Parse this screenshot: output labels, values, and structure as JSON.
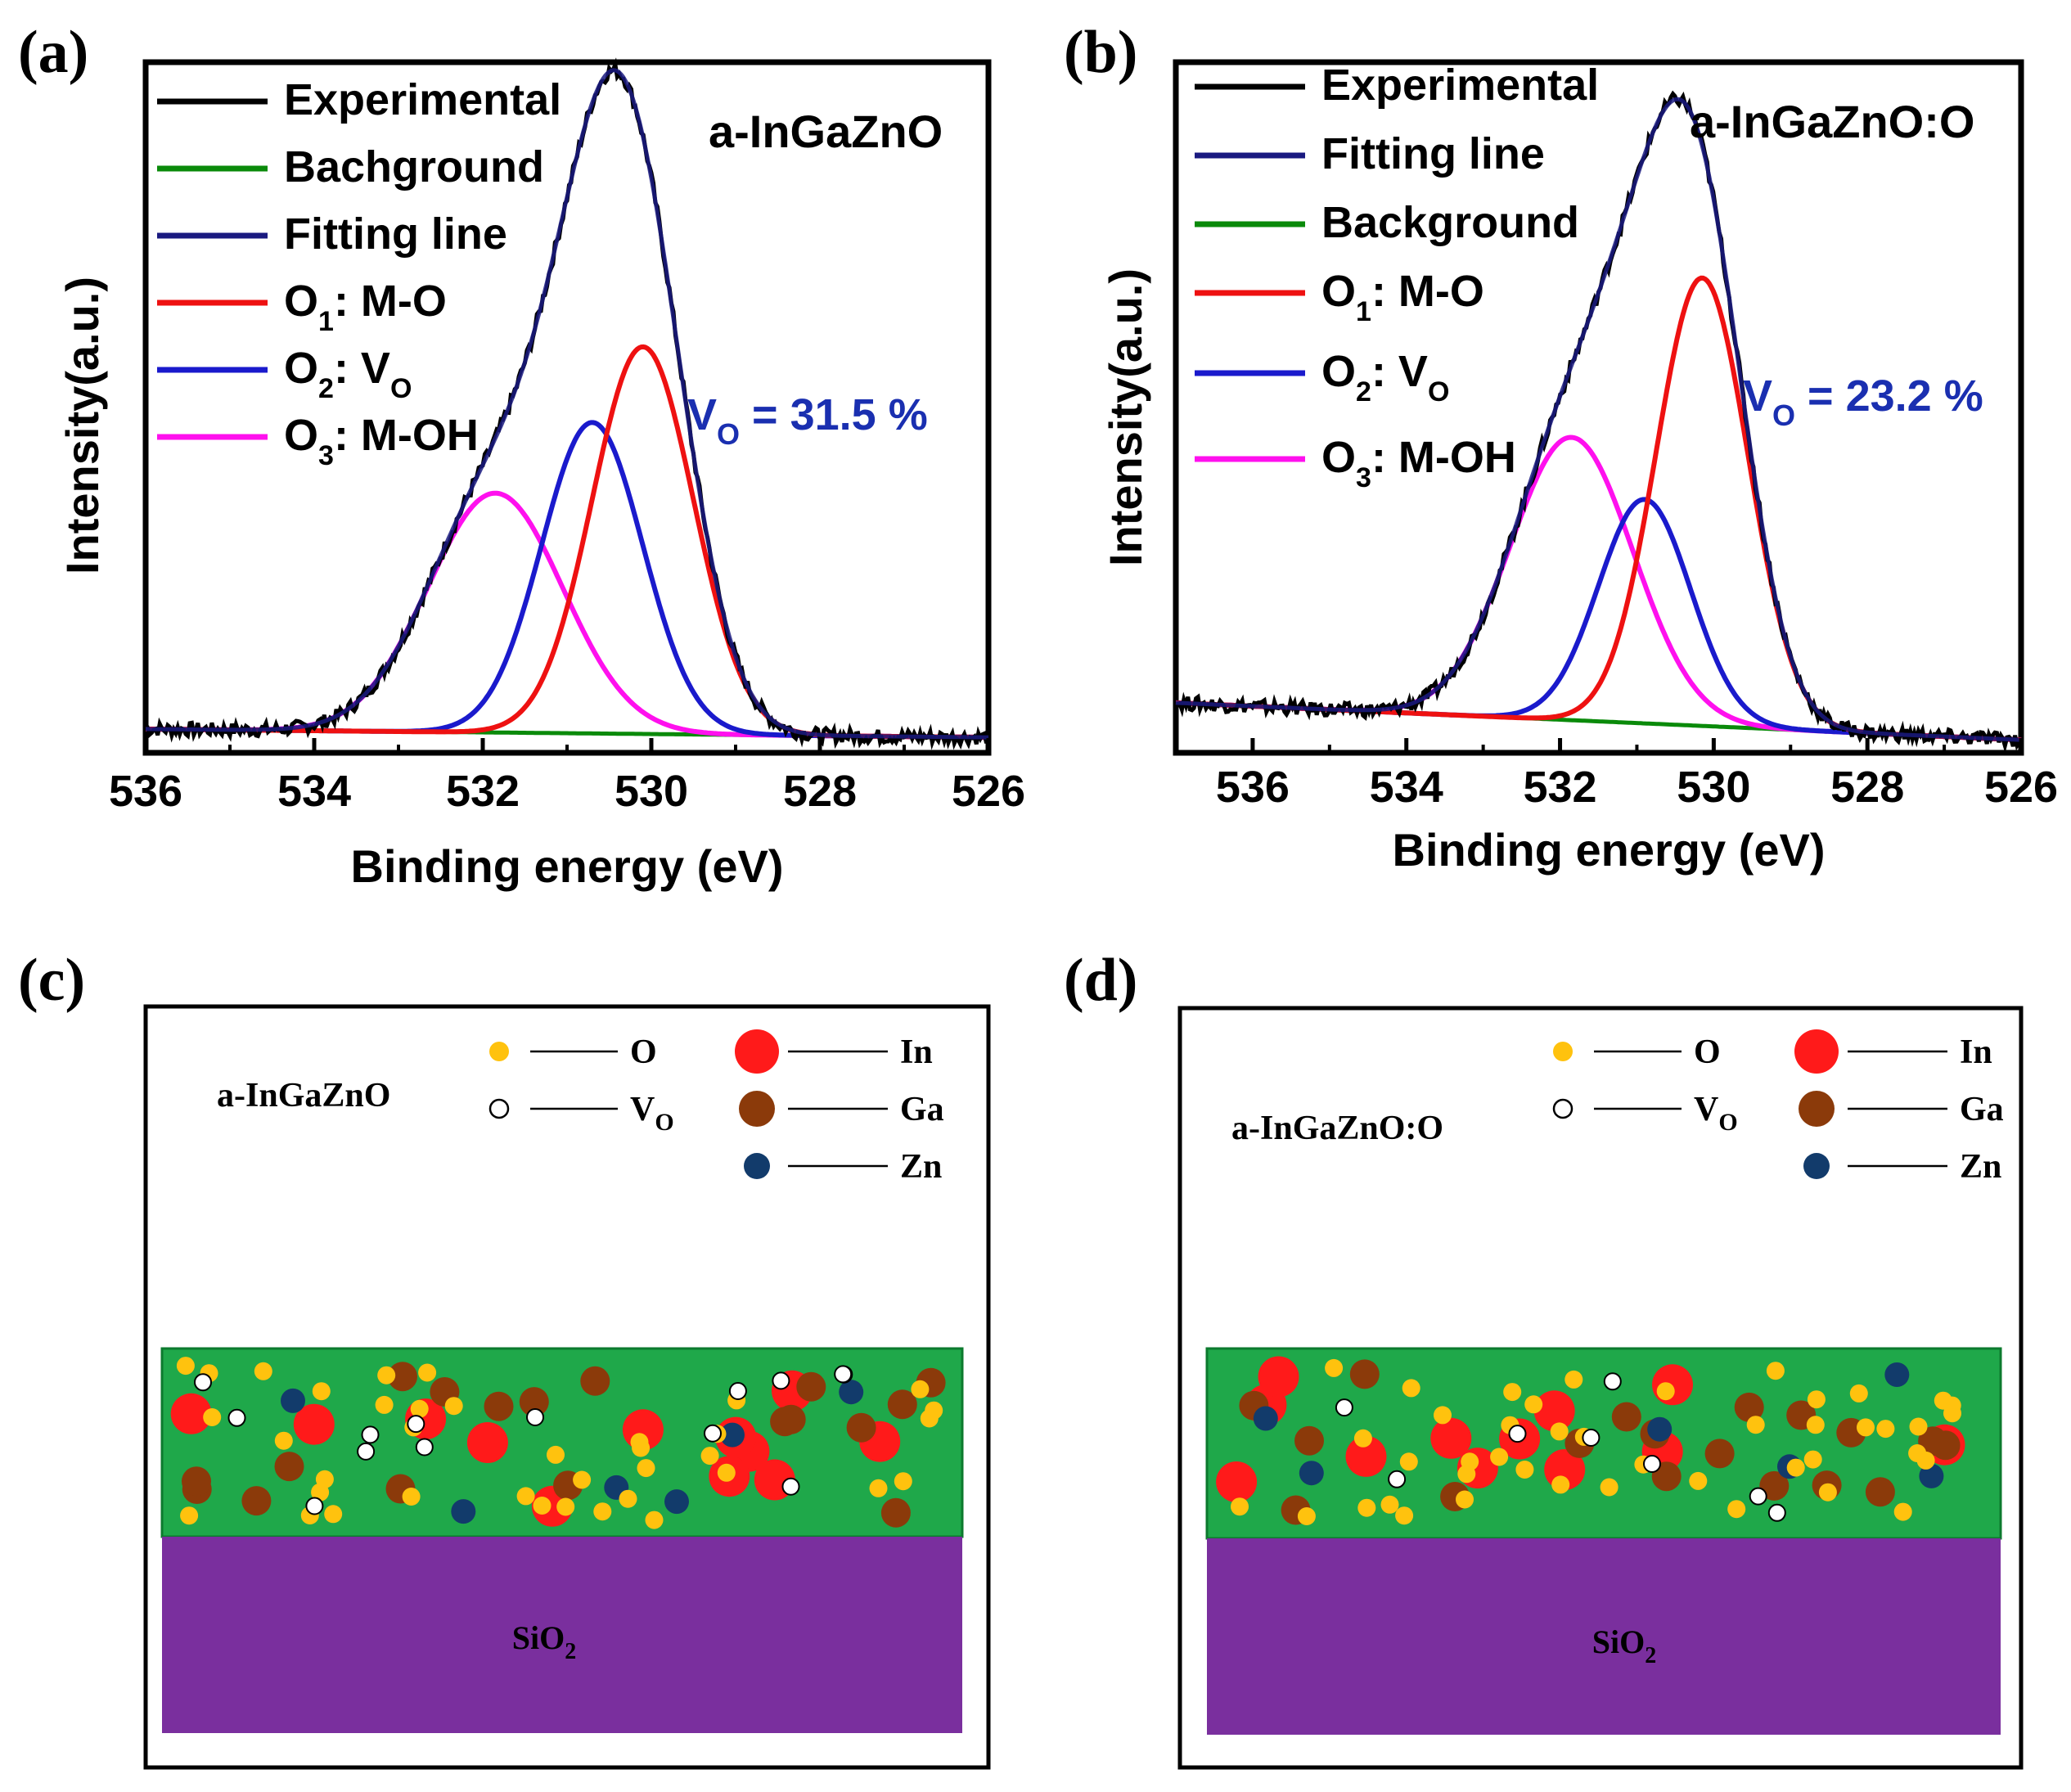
{
  "panels": {
    "a": "(a)",
    "b": "(b)",
    "c": "(c)",
    "d": "(d)"
  },
  "chart_data": [
    {
      "type": "line",
      "panel": "a",
      "sample_label": "a-InGaZnO",
      "xlabel": "Binding energy (eV)",
      "ylabel": "Intensity(a.u.)",
      "xlim": [
        536,
        526
      ],
      "ylim": [
        0,
        100
      ],
      "xticks": [
        "536",
        "534",
        "532",
        "530",
        "528",
        "526"
      ],
      "annotation": {
        "symbol": "V",
        "sub": "O",
        "text": " = 31.5 %"
      },
      "background": {
        "start": 0.9,
        "end": -0.4
      },
      "peaks": {
        "O1": {
          "center": 530.1,
          "height": 60.5,
          "sigma": 0.6
        },
        "O2": {
          "center": 530.7,
          "height": 48.6,
          "sigma": 0.6
        },
        "O3": {
          "center": 531.85,
          "height": 37.4,
          "sigma": 0.8
        }
      },
      "legend": [
        {
          "key": "experimental",
          "label": "Experimental",
          "color": "#000000"
        },
        {
          "key": "background",
          "label": "Bachground",
          "color": "#0a8a0a"
        },
        {
          "key": "fit",
          "label": "Fitting line",
          "color": "#1a1a80"
        },
        {
          "key": "O1",
          "label": "O",
          "sub": "1",
          "suffix": ": M-O",
          "color": "#ee1111"
        },
        {
          "key": "O2",
          "label": "O",
          "sub": "2",
          "suffix": ": V",
          "sub2": "O",
          "color": "#1a1acc"
        },
        {
          "key": "O3",
          "label": "O",
          "sub": "3",
          "suffix": ": M-OH",
          "color": "#ff10ee"
        }
      ]
    },
    {
      "type": "line",
      "panel": "b",
      "sample_label": "a-InGaZnO:O",
      "xlabel": "Binding energy (eV)",
      "ylabel": "Intensity(a.u.)",
      "xlim": [
        537,
        526
      ],
      "ylim": [
        0,
        100
      ],
      "xticks": [
        "536",
        "534",
        "532",
        "530",
        "528",
        "526"
      ],
      "annotation": {
        "symbol": "V",
        "sub": "O",
        "text": " = 23.2 %"
      },
      "background": {
        "start": 5.0,
        "end": -0.8
      },
      "peaks": {
        "O1": {
          "center": 530.15,
          "height": 70.0,
          "sigma": 0.6
        },
        "O2": {
          "center": 530.9,
          "height": 35.0,
          "sigma": 0.6
        },
        "O3": {
          "center": 531.85,
          "height": 44.2,
          "sigma": 0.8
        }
      },
      "legend": [
        {
          "key": "experimental",
          "label": "Experimental",
          "color": "#000000"
        },
        {
          "key": "fit",
          "label": "Fitting line",
          "color": "#1a1a80"
        },
        {
          "key": "background",
          "label": "Background",
          "color": "#0a8a0a"
        },
        {
          "key": "O1",
          "label": "O",
          "sub": "1",
          "suffix": ": M-O",
          "color": "#ee1111"
        },
        {
          "key": "O2",
          "label": "O",
          "sub": "2",
          "suffix": ": V",
          "sub2": "O",
          "color": "#1a1acc"
        },
        {
          "key": "O3",
          "label": "O",
          "sub": "3",
          "suffix": ": M-OH",
          "color": "#ff10ee"
        }
      ]
    }
  ],
  "diagrams": [
    {
      "panel": "c",
      "sample_label": "a-InGaZnO",
      "substrate_label": "SiO",
      "substrate_sub": "2",
      "counts": {
        "O": 38,
        "Vo": 14,
        "In": 12,
        "Ga": 18,
        "Zn": 6
      },
      "legend": [
        {
          "key": "O",
          "label": "O"
        },
        {
          "key": "Vo",
          "label": "V",
          "sub": "O"
        },
        {
          "key": "In",
          "label": "In"
        },
        {
          "key": "Ga",
          "label": "Ga"
        },
        {
          "key": "Zn",
          "label": "Zn"
        }
      ]
    },
    {
      "panel": "d",
      "sample_label": "a-InGaZnO:O",
      "substrate_label": "SiO",
      "substrate_sub": "2",
      "counts": {
        "O": 44,
        "Vo": 8,
        "In": 12,
        "Ga": 18,
        "Zn": 6
      },
      "legend": [
        {
          "key": "O",
          "label": "O"
        },
        {
          "key": "Vo",
          "label": "V",
          "sub": "O"
        },
        {
          "key": "In",
          "label": "In"
        },
        {
          "key": "Ga",
          "label": "Ga"
        },
        {
          "key": "Zn",
          "label": "Zn"
        }
      ]
    }
  ],
  "colors": {
    "layer": "#1fa84a",
    "substrate": "#7a2f9e",
    "O": "#ffc20e",
    "Vo": "#ffffff",
    "In": "#ff1a1a",
    "Ga": "#8b3a0a",
    "Zn": "#123b6b"
  }
}
